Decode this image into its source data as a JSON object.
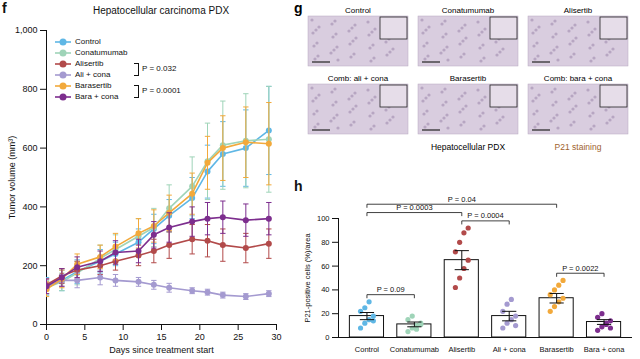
{
  "chart_data": [
    {
      "type": "line",
      "panel_label": "f",
      "title": "Hepatocellular carcinoma PDX",
      "x_label": "Days since treatment start",
      "y_label": "Tumor volume (mm³)",
      "x": [
        0,
        2,
        4,
        7,
        9,
        12,
        14,
        16,
        19,
        21,
        23,
        26,
        29
      ],
      "xlim": [
        0,
        30
      ],
      "xticks": [
        0,
        5,
        10,
        15,
        20,
        25,
        30
      ],
      "ylim": [
        0,
        1000
      ],
      "yticks": [
        0,
        200,
        400,
        600,
        800,
        {
          "value": 1000,
          "label": "1,000"
        }
      ],
      "marker": "circle",
      "legend": "top-left",
      "series": [
        {
          "name": "Control",
          "color": "#5fb7e5",
          "values": [
            130,
            150,
            180,
            215,
            240,
            280,
            325,
            370,
            430,
            520,
            580,
            600,
            660
          ],
          "errors": [
            30,
            35,
            40,
            40,
            40,
            45,
            50,
            55,
            70,
            90,
            110,
            130,
            150
          ]
        },
        {
          "name": "Conatumumab",
          "color": "#9fd4b8",
          "values": [
            125,
            145,
            175,
            225,
            255,
            300,
            330,
            395,
            470,
            555,
            610,
            625,
            630
          ],
          "errors": [
            25,
            30,
            40,
            45,
            50,
            60,
            65,
            80,
            100,
            130,
            150,
            160,
            180
          ]
        },
        {
          "name": "Alisertib",
          "color": "#b24a4a",
          "values": [
            135,
            165,
            185,
            200,
            215,
            235,
            250,
            270,
            290,
            285,
            270,
            260,
            275
          ],
          "errors": [
            20,
            25,
            30,
            30,
            30,
            35,
            40,
            45,
            50,
            55,
            55,
            50,
            50
          ]
        },
        {
          "name": "Ali + cona",
          "color": "#a49ad0",
          "values": [
            125,
            150,
            150,
            160,
            150,
            145,
            135,
            125,
            115,
            110,
            100,
            95,
            105
          ],
          "errors": [
            20,
            20,
            25,
            25,
            20,
            15,
            15,
            15,
            10,
            10,
            10,
            10,
            10
          ]
        },
        {
          "name": "Barasertib",
          "color": "#f2a93b",
          "values": [
            120,
            155,
            205,
            230,
            265,
            310,
            335,
            380,
            445,
            550,
            600,
            620,
            615
          ],
          "errors": [
            25,
            30,
            35,
            40,
            45,
            50,
            55,
            60,
            70,
            90,
            110,
            120,
            140
          ]
        },
        {
          "name": "Bara + cona",
          "color": "#7d2e8e",
          "values": [
            130,
            160,
            195,
            215,
            245,
            250,
            305,
            330,
            350,
            360,
            365,
            355,
            360
          ],
          "errors": [
            25,
            30,
            35,
            35,
            40,
            40,
            45,
            50,
            50,
            55,
            55,
            55,
            55
          ]
        }
      ],
      "annotations": [
        {
          "from": "Alisertib",
          "to": "Ali + cona",
          "label": "P = 0.032"
        },
        {
          "from": "Barasertib",
          "to": "Bara + cona",
          "label": "P = 0.0001"
        }
      ]
    },
    {
      "type": "bar",
      "panel_label": "h",
      "y_label": "P21-positive cells (%)/area",
      "categories": [
        "Control",
        "Conatumumab",
        "Alisertib",
        "Ali + cona",
        "Barasertib",
        "Bara + cona"
      ],
      "values": [
        18,
        11,
        65,
        18,
        33,
        13
      ],
      "errors": [
        3,
        2,
        8,
        4,
        4,
        2
      ],
      "colors": [
        "#5fb7e5",
        "#9fd4b8",
        "#b24a4a",
        "#a49ad0",
        "#f2a93b",
        "#7d2e8e"
      ],
      "points": [
        [
          8,
          12,
          15,
          18,
          22,
          25,
          30,
          14
        ],
        [
          5,
          8,
          10,
          12,
          15,
          18,
          7,
          11
        ],
        [
          42,
          50,
          58,
          65,
          72,
          80,
          88,
          92
        ],
        [
          8,
          12,
          15,
          18,
          22,
          28,
          32,
          10
        ],
        [
          22,
          26,
          30,
          33,
          36,
          40,
          44,
          48
        ],
        [
          6,
          9,
          11,
          14,
          17,
          20,
          12,
          8
        ]
      ],
      "ylim": [
        0,
        100
      ],
      "yticks": [
        0,
        20,
        40,
        60,
        80,
        100
      ],
      "annotations": [
        {
          "from": "Control",
          "to": "Conatumumab",
          "label": "P = 0.09"
        },
        {
          "from": "Control",
          "to": "Alisertib",
          "label": "P = 0.0003"
        },
        {
          "from": "Control",
          "to": "Barasertib",
          "label": "P = 0.04"
        },
        {
          "from": "Alisertib",
          "to": "Ali + cona",
          "label": "P = 0.0004"
        },
        {
          "from": "Barasertib",
          "to": "Bara + cona",
          "label": "P = 0.0022"
        }
      ]
    }
  ],
  "image_panel": {
    "panel_label": "g",
    "tiles": [
      "Control",
      "Conatumumab",
      "Alisertib",
      "Comb: ali + cona",
      "Barasertib",
      "Comb: bara + cona"
    ],
    "caption": "Hepatocellular PDX",
    "stain_label": "P21 staining"
  }
}
